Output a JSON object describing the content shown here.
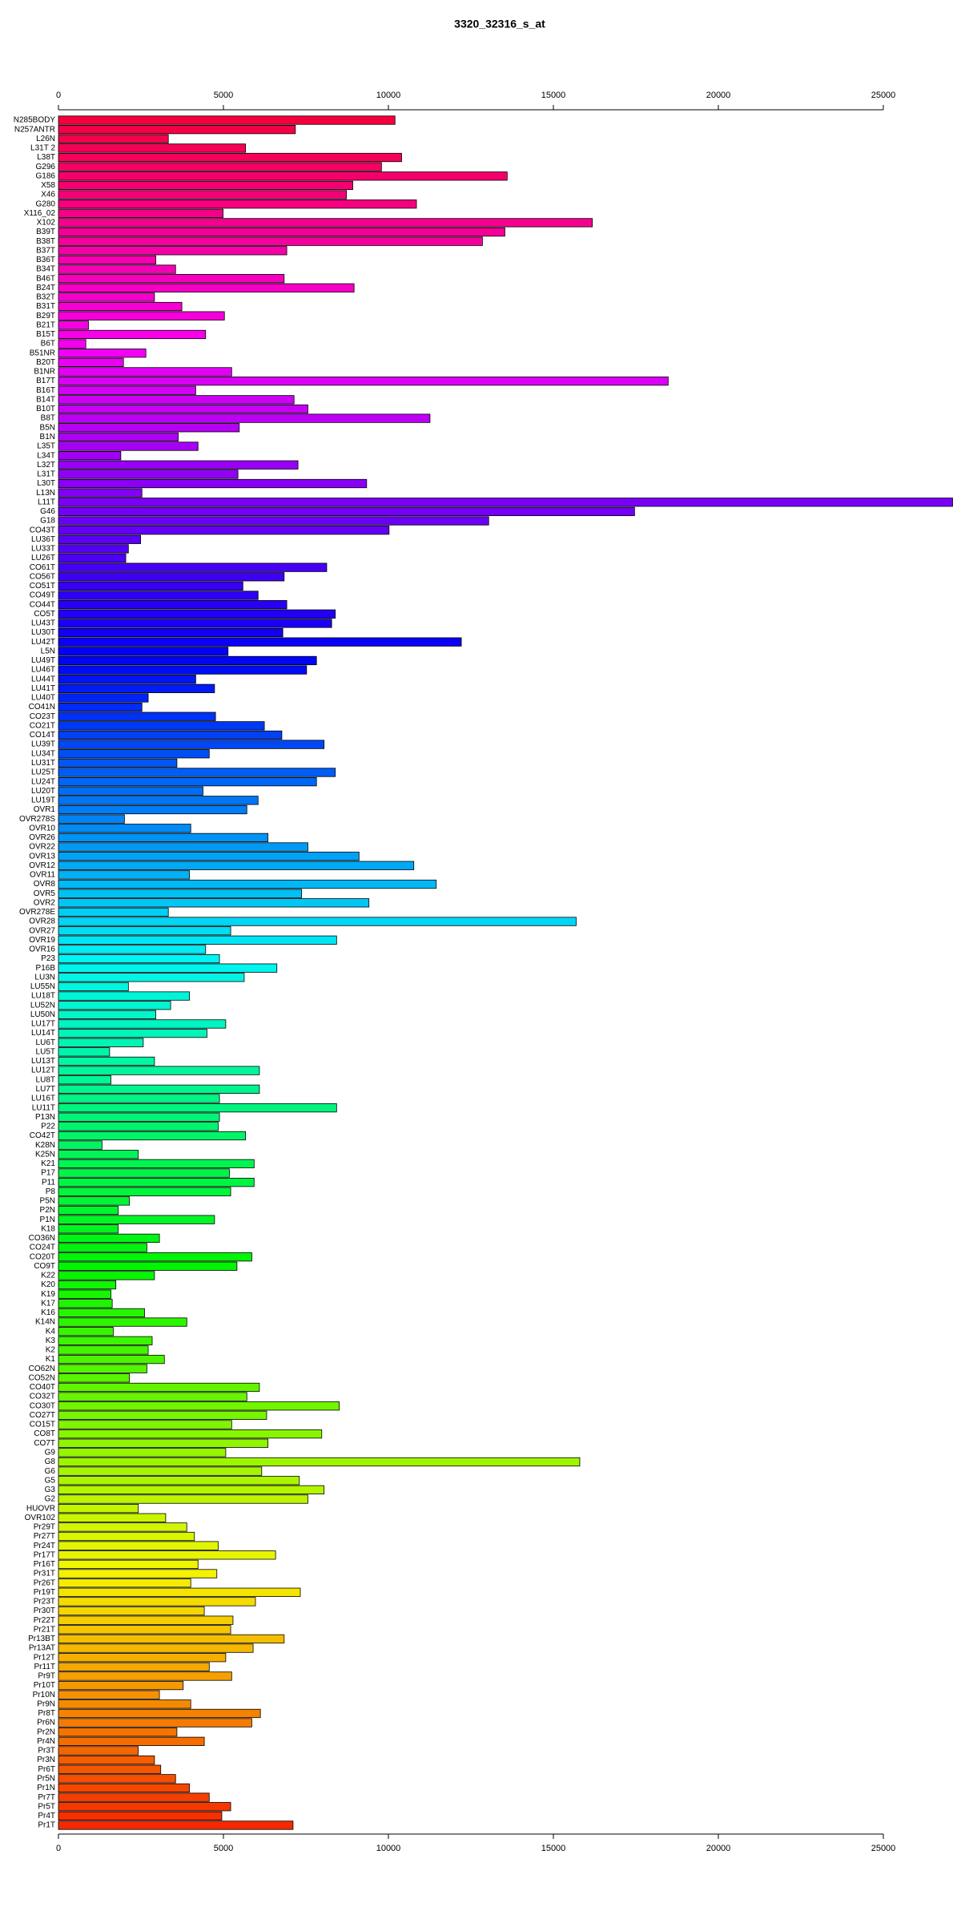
{
  "chart_data": {
    "type": "barh",
    "title": "3320_32316_s_at",
    "categories": [
      "N285BODY",
      "N257ANTR",
      "L26N",
      "L31T 2",
      "L38T",
      "G296",
      "G186",
      "X58",
      "X46",
      "G280",
      "X116_02",
      "X102",
      "B39T",
      "B38T",
      "B37T",
      "B36T",
      "B34T",
      "B46T",
      "B24T",
      "B32T",
      "B31T",
      "B29T",
      "B21T",
      "B15T",
      "B6T",
      "B51NR",
      "B20T",
      "B1NR",
      "B17T",
      "B16T",
      "B14T",
      "B10T",
      "B8T",
      "B5N",
      "B1N",
      "L35T",
      "L34T",
      "L32T",
      "L31T",
      "L30T",
      "L13N",
      "L11T",
      "G46",
      "G18",
      "CO43T",
      "LU36T",
      "LU33T",
      "LU26T",
      "CO61T",
      "CO56T",
      "CO51T",
      "CO49T",
      "CO44T",
      "CO5T",
      "LU43T",
      "LU30T",
      "LU42T",
      "L5N",
      "LU49T",
      "LU46T",
      "LU44T",
      "LU41T",
      "LU40T",
      "CO41N",
      "CO23T",
      "CO21T",
      "CO14T",
      "LU39T",
      "LU34T",
      "LU31T",
      "LU25T",
      "LU24T",
      "LU20T",
      "LU19T",
      "OVR1",
      "OVR278S",
      "OVR10",
      "OVR26",
      "OVR22",
      "OVR13",
      "OVR12",
      "OVR11",
      "OVR8",
      "OVR5",
      "OVR2",
      "OVR278E",
      "OVR28",
      "OVR27",
      "OVR19",
      "OVR16",
      "P23",
      "P16B",
      "LU3N",
      "LU55N",
      "LU18T",
      "LU52N",
      "LU50N",
      "LU17T",
      "LU14T",
      "LU6T",
      "LU5T",
      "LU13T",
      "LU12T",
      "LU8T",
      "LU7T",
      "LU16T",
      "LU11T",
      "P13N",
      "P22",
      "CO42T",
      "K28N",
      "K25N",
      "K21",
      "P17",
      "P11",
      "P8",
      "P5N",
      "P2N",
      "P1N",
      "K18",
      "CO36N",
      "CO24T",
      "CO20T",
      "CO9T",
      "K22",
      "K20",
      "K19",
      "K17",
      "K16",
      "K14N",
      "K4",
      "K3",
      "K2",
      "K1",
      "CO62N",
      "CO52N",
      "CO40T",
      "CO32T",
      "CO30T",
      "CO27T",
      "CO15T",
      "CO8T",
      "CO7T",
      "G9",
      "G8",
      "G6",
      "G5",
      "G3",
      "G2",
      "HUOVR",
      "OVR102",
      "Pr29T",
      "Pr27T",
      "Pr24T",
      "Pr17T",
      "Pr16T",
      "Pr31T",
      "Pr26T",
      "Pr19T",
      "Pr23T",
      "Pr30T",
      "Pr22T",
      "Pr21T",
      "Pr13BT",
      "Pr13AT",
      "Pr12T",
      "Pr11T",
      "Pr9T",
      "Pr10T",
      "Pr10N",
      "Pr9N",
      "Pr8T",
      "Pr6N",
      "Pr2N",
      "Pr4N",
      "Pr3T",
      "Pr3N",
      "Pr6T",
      "Pr5N",
      "Pr1N",
      "Pr7T",
      "Pr5T",
      "Pr4T",
      "Pr1T"
    ],
    "values": [
      10200,
      7180,
      3330,
      5670,
      10400,
      9790,
      13600,
      8920,
      8730,
      10850,
      4990,
      16180,
      13530,
      12850,
      6920,
      2950,
      3550,
      6840,
      8960,
      2910,
      3740,
      5030,
      910,
      4460,
      830,
      2650,
      1970,
      5250,
      18480,
      4160,
      7140,
      7560,
      11260,
      5480,
      3630,
      4230,
      1890,
      7260,
      5440,
      9340,
      2530,
      27100,
      17460,
      13040,
      10020,
      2490,
      2120,
      2040,
      8130,
      6840,
      5590,
      6050,
      6920,
      8390,
      8280,
      6800,
      12210,
      5140,
      7820,
      7520,
      4160,
      4730,
      2720,
      2530,
      4760,
      6240,
      6770,
      8050,
      4570,
      3590,
      8390,
      7820,
      4380,
      6050,
      5710,
      2000,
      4010,
      6350,
      7560,
      9110,
      10770,
      3970,
      11450,
      7370,
      9410,
      3330,
      15690,
      5220,
      8430,
      4460,
      4880,
      6620,
      5630,
      2120,
      3970,
      3400,
      2950,
      5070,
      4500,
      2570,
      1550,
      2910,
      6090,
      1590,
      6090,
      4880,
      8430,
      4880,
      4840,
      5670,
      1320,
      2420,
      5930,
      5180,
      5930,
      5220,
      2150,
      1810,
      4730,
      1810,
      3060,
      2680,
      5860,
      5410,
      2910,
      1740,
      1590,
      1630,
      2610,
      3890,
      1660,
      2840,
      2720,
      3210,
      2680,
      2150,
      6090,
      5710,
      8510,
      6310,
      5250,
      7980,
      6350,
      5070,
      15800,
      6160,
      7300,
      8050,
      7560,
      2420,
      3250,
      3890,
      4120,
      4840,
      6580,
      4230,
      4800,
      4010,
      7330,
      5970,
      4420,
      5290,
      5220,
      6840,
      5900,
      5070,
      4570,
      5250,
      3780,
      3060,
      4010,
      6120,
      5860,
      3590,
      4420,
      2420,
      2910,
      3100,
      3550,
      3970,
      4570,
      5220,
      4950,
      7110
    ],
    "hue_range": [
      345,
      10
    ],
    "xlim": [
      0,
      25000
    ],
    "xticks": [
      0,
      5000,
      10000,
      15000,
      20000,
      25000
    ]
  }
}
